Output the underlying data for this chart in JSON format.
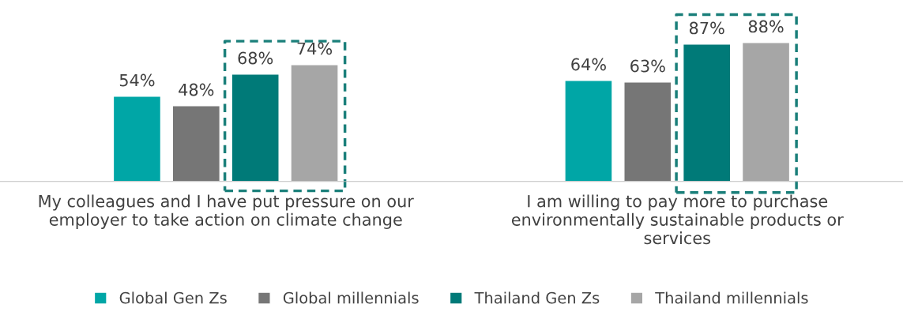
{
  "chart_data": {
    "type": "bar",
    "categories": [
      "My colleagues and I have put pressure on our\nemployer to take action on climate change",
      "I am willing to pay more to purchase\nenvironmentally sustainable products or\nservices"
    ],
    "series": [
      {
        "name": "Global Gen Zs",
        "color": "#00a6a6",
        "values": [
          54,
          64
        ],
        "value_labels": [
          "54%",
          "64%"
        ]
      },
      {
        "name": "Global millennials",
        "color": "#767676",
        "values": [
          48,
          63
        ],
        "value_labels": [
          "48%",
          "63%"
        ]
      },
      {
        "name": "Thailand Gen Zs",
        "color": "#007a78",
        "values": [
          68,
          87
        ],
        "value_labels": [
          "68%",
          "87%"
        ]
      },
      {
        "name": "Thailand millennials",
        "color": "#a6a6a6",
        "values": [
          74,
          88
        ],
        "value_labels": [
          "74%",
          "88%"
        ]
      }
    ],
    "tick_labels": "x",
    "legend": "bottom",
    "grid": false
  }
}
